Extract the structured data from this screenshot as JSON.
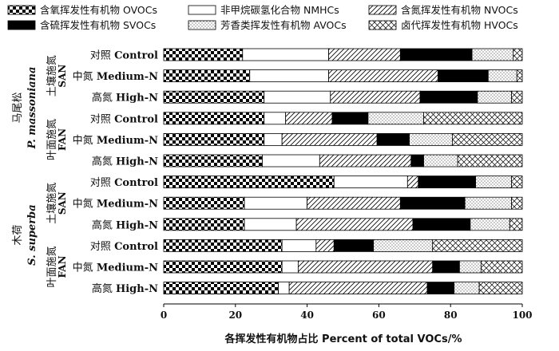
{
  "chart_data": {
    "type": "bar",
    "orientation": "horizontal",
    "stacked": true,
    "xlabel": "各挥发性有机物占比  Percent of  total VOCs/%",
    "xlim": [
      0,
      100
    ],
    "xticks": [
      0,
      20,
      40,
      60,
      80,
      100
    ],
    "grid": false,
    "legend_position": "top",
    "series": [
      {
        "name": "含氧挥发性有机物  OVOCs",
        "pattern": "checker",
        "values": [
          22,
          24,
          28,
          28,
          28,
          27.5,
          47.5,
          22.5,
          22.5,
          33,
          33,
          32
        ]
      },
      {
        "name": "非甲烷碳氢化合物  NMHCs",
        "pattern": "white",
        "values": [
          24,
          22,
          18.5,
          6,
          5,
          16,
          20.5,
          17.5,
          14.5,
          9.5,
          4.5,
          3
        ]
      },
      {
        "name": "含氮挥发性有机物  NVOCs",
        "pattern": "diagonal",
        "values": [
          20,
          30.5,
          25,
          13,
          26.5,
          25.5,
          3,
          26,
          32.5,
          5,
          37.5,
          38.5
        ]
      },
      {
        "name": "含硫挥发性有机物  SVOCs",
        "pattern": "black",
        "values": [
          20,
          14,
          16,
          10,
          9,
          3.5,
          16,
          18,
          16,
          11,
          7.5,
          7.5
        ]
      },
      {
        "name": "芳香类挥发性有机物  AVOCs",
        "pattern": "dots",
        "values": [
          11.5,
          8,
          9.5,
          15.5,
          12,
          9.5,
          10,
          13,
          11,
          16.5,
          6,
          7
        ]
      },
      {
        "name": "卤代挥发性有机物  HVOCs",
        "pattern": "crosshatch",
        "values": [
          2.5,
          1.5,
          3,
          27.5,
          19.5,
          18,
          3,
          3,
          3.5,
          25,
          11.5,
          12
        ]
      }
    ],
    "legend_layout": {
      "row1": [
        0,
        1,
        2
      ],
      "row2": [
        3,
        4,
        5
      ]
    },
    "rows": [
      {
        "cn": "对照",
        "en": "Control"
      },
      {
        "cn": "中氮",
        "en": "Medium-N"
      },
      {
        "cn": "高氮",
        "en": "High-N"
      },
      {
        "cn": "对照",
        "en": "Control"
      },
      {
        "cn": "中氮",
        "en": "Medium-N"
      },
      {
        "cn": "高氮",
        "en": "High-N"
      },
      {
        "cn": "对照",
        "en": "Control"
      },
      {
        "cn": "中氮",
        "en": "Medium-N"
      },
      {
        "cn": "高氮",
        "en": "High-N"
      },
      {
        "cn": "对照",
        "en": "Control"
      },
      {
        "cn": "中氮",
        "en": "Medium-N"
      },
      {
        "cn": "高氮",
        "en": "High-N"
      }
    ],
    "treatment_groups": [
      {
        "cn": "土壤施氮",
        "en": "SAN",
        "rows": [
          0,
          2
        ]
      },
      {
        "cn": "叶面施氮",
        "en": "FAN",
        "rows": [
          3,
          5
        ]
      },
      {
        "cn": "土壤施氮",
        "en": "SAN",
        "rows": [
          6,
          8
        ]
      },
      {
        "cn": "叶面施氮",
        "en": "FAN",
        "rows": [
          9,
          11
        ]
      }
    ],
    "species_groups": [
      {
        "cn": "马尾松",
        "latin": "P. massoniana",
        "rows": [
          0,
          5
        ]
      },
      {
        "cn": "木荷",
        "latin": "S. superba",
        "rows": [
          6,
          11
        ]
      }
    ]
  }
}
